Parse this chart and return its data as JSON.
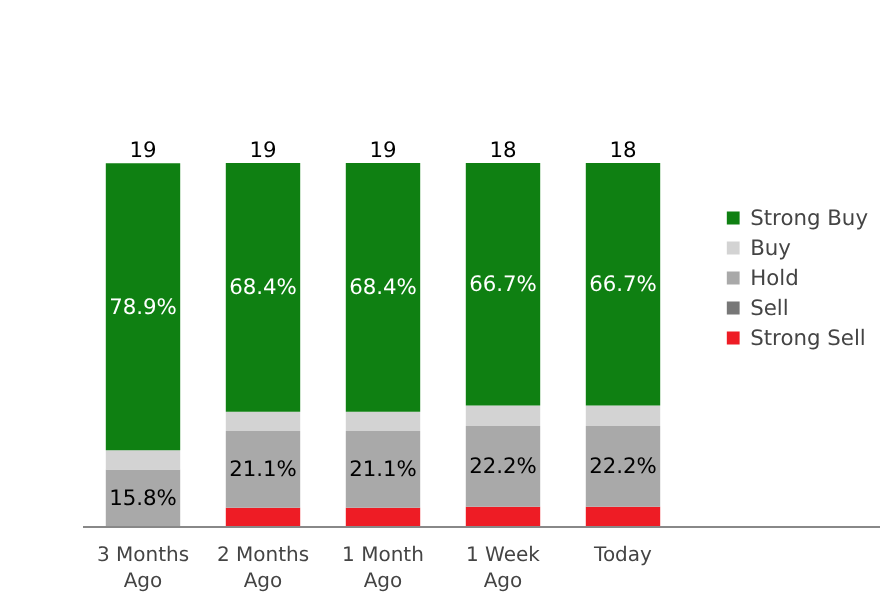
{
  "chart_data": {
    "type": "bar",
    "stacked": true,
    "categories": [
      "3 Months Ago",
      "2 Months Ago",
      "1 Month Ago",
      "1 Week Ago",
      "Today"
    ],
    "series": [
      {
        "name": "Strong Sell",
        "color": "#ee1c25",
        "values": [
          0,
          5.3,
          5.3,
          5.6,
          5.6
        ],
        "value_labels": [
          null,
          null,
          null,
          null,
          null
        ]
      },
      {
        "name": "Sell",
        "color": "#777777",
        "values": [
          0,
          0,
          0,
          0,
          0
        ],
        "value_labels": [
          null,
          null,
          null,
          null,
          null
        ]
      },
      {
        "name": "Hold",
        "color": "#a9a9a9",
        "values": [
          15.8,
          21.1,
          21.1,
          22.2,
          22.2
        ],
        "value_labels": [
          "15.8%",
          "21.1%",
          "21.1%",
          "22.2%",
          "22.2%"
        ]
      },
      {
        "name": "Buy",
        "color": "#d3d3d3",
        "values": [
          5.3,
          5.3,
          5.3,
          5.6,
          5.6
        ],
        "value_labels": [
          null,
          null,
          null,
          null,
          null
        ]
      },
      {
        "name": "Strong Buy",
        "color": "#0f8012",
        "values": [
          78.9,
          68.4,
          68.4,
          66.7,
          66.7
        ],
        "value_labels": [
          "78.9%",
          "68.4%",
          "68.4%",
          "66.7%",
          "66.7%"
        ]
      }
    ],
    "annotations": [
      {
        "text": "19",
        "x": "3 Months Ago",
        "y": 100
      },
      {
        "text": "19",
        "x": "2 Months Ago",
        "y": 100
      },
      {
        "text": "19",
        "x": "1 Month Ago",
        "y": 100
      },
      {
        "text": "18",
        "x": "1 Week Ago",
        "y": 100
      },
      {
        "text": "18",
        "x": "Today",
        "y": 100
      }
    ],
    "legend": "right",
    "grid": false
  }
}
